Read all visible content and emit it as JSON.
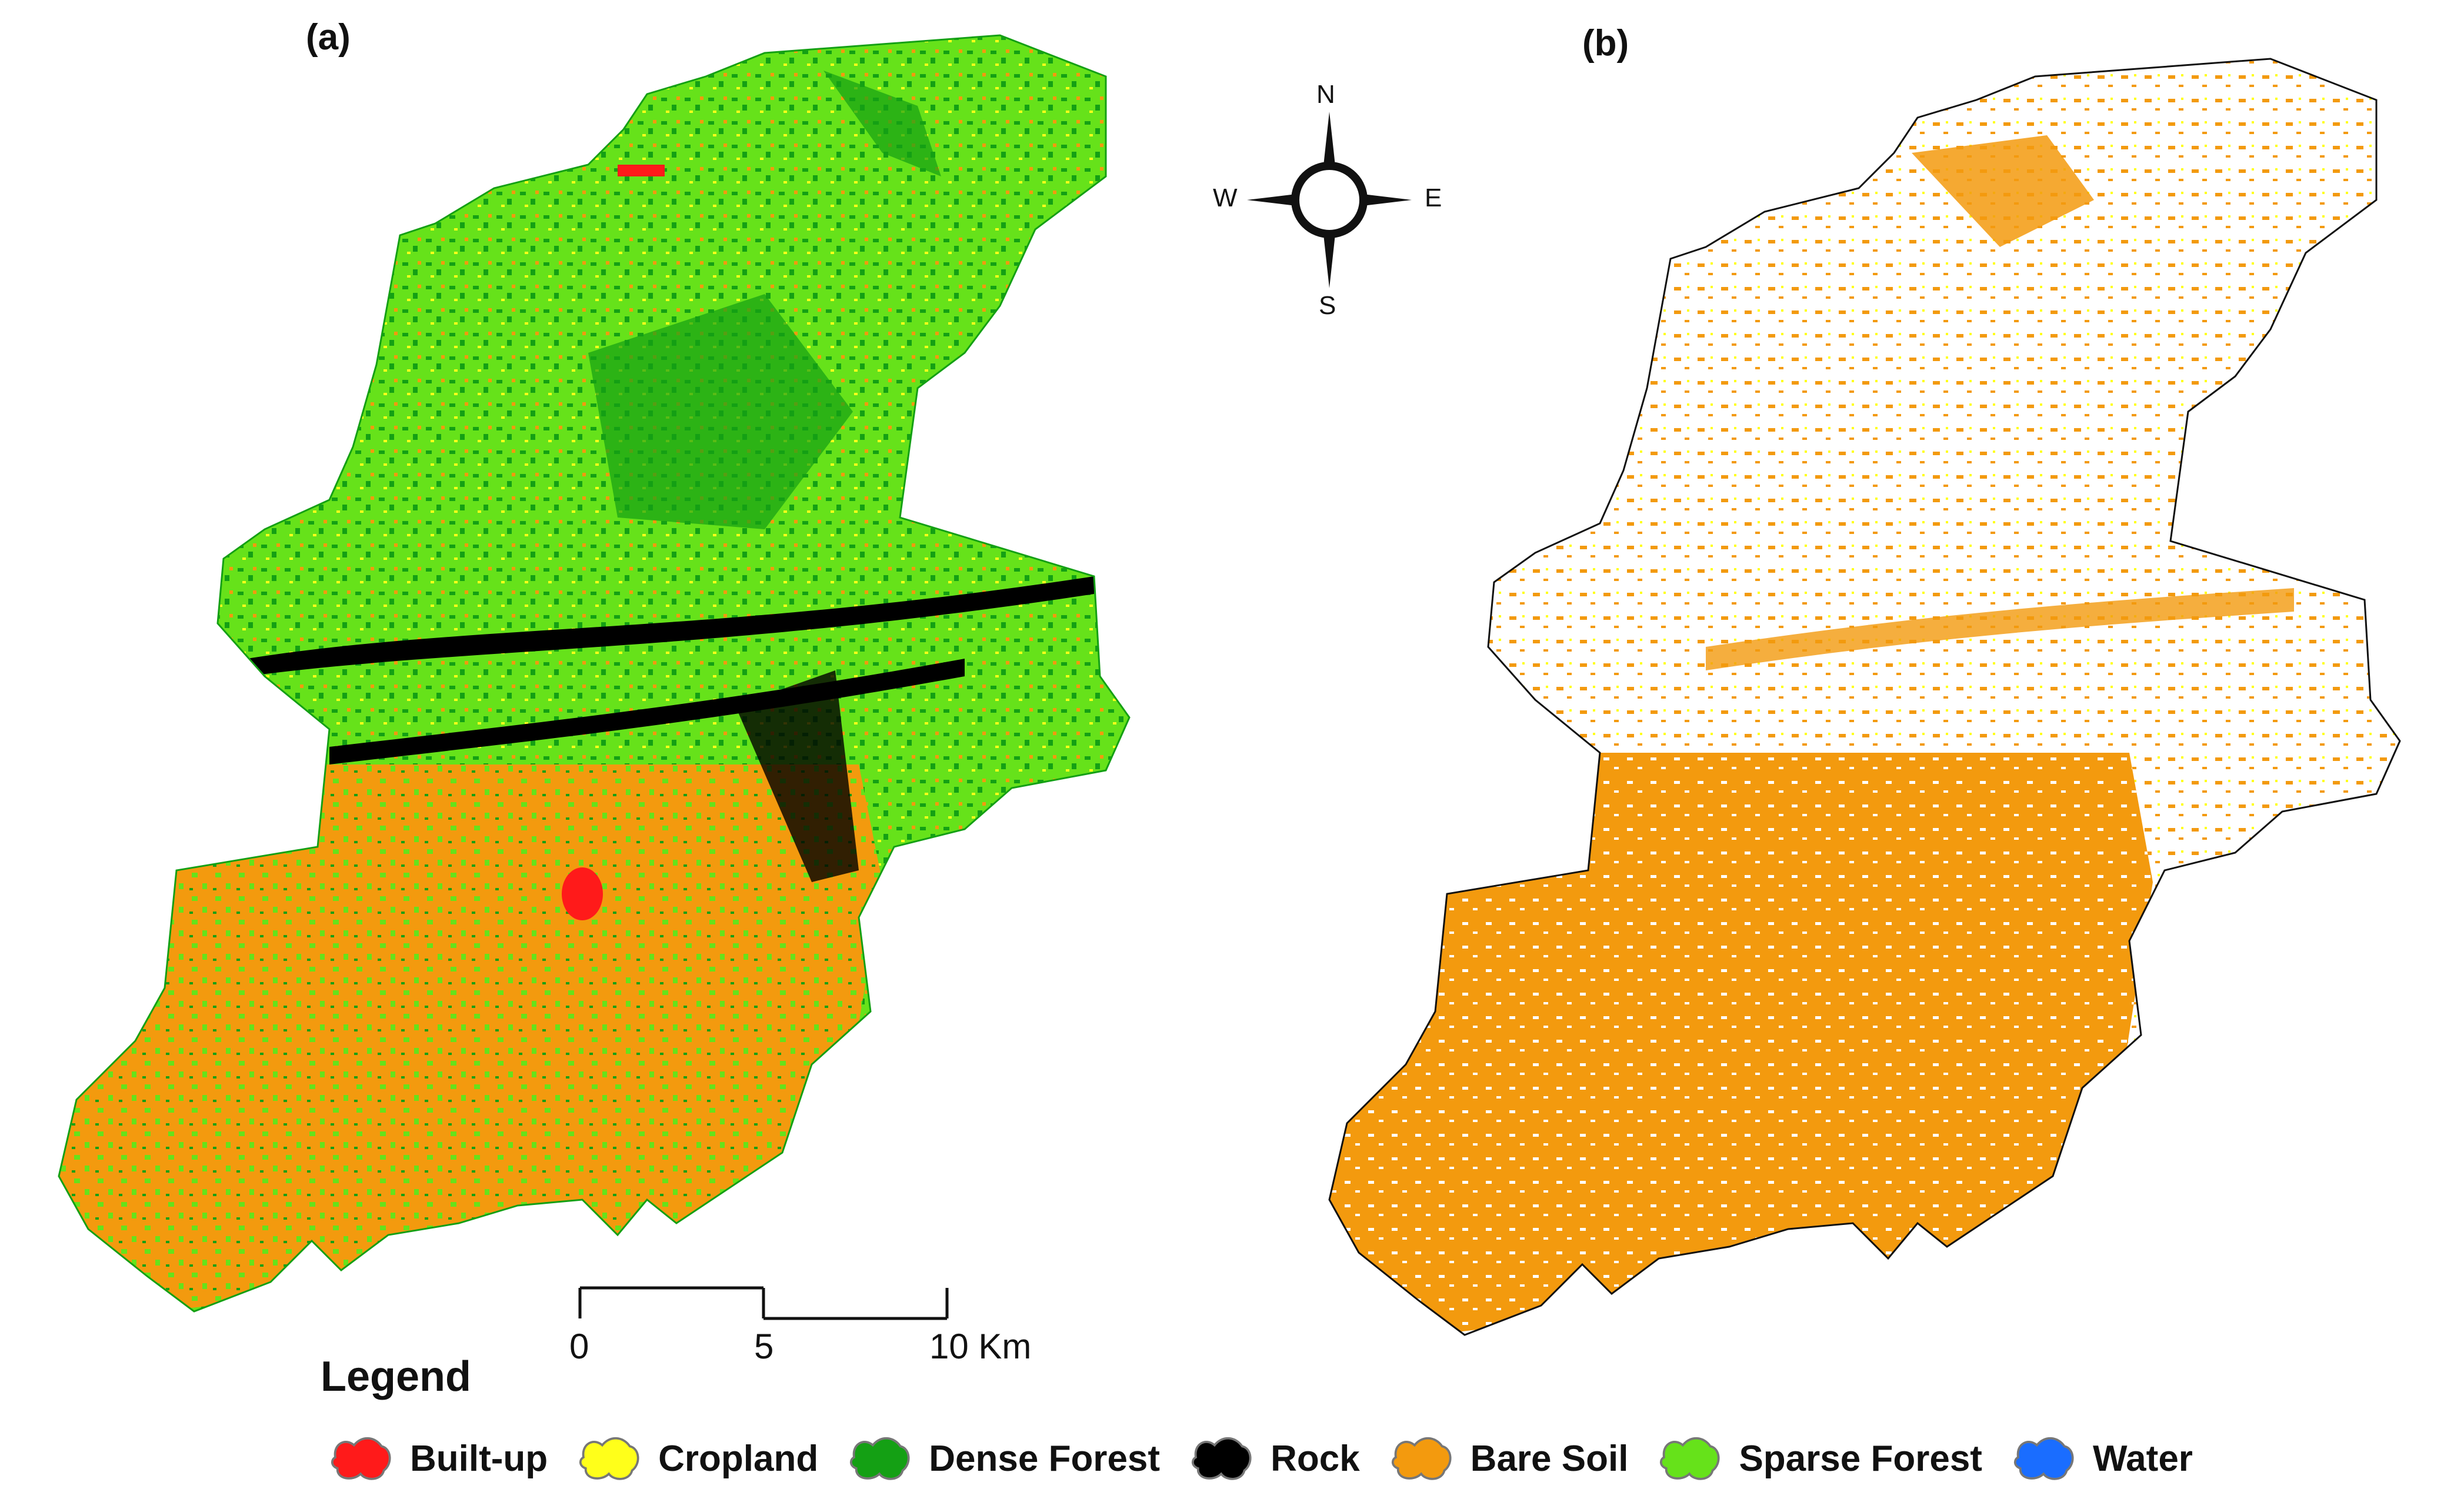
{
  "panels": {
    "a": {
      "label": "(a)"
    },
    "b": {
      "label": "(b)"
    }
  },
  "compass": {
    "n": "N",
    "s": "S",
    "e": "E",
    "w": "W"
  },
  "scale": {
    "ticks": [
      "0",
      "5",
      "10 Km"
    ]
  },
  "legend": {
    "title": "Legend",
    "items": [
      {
        "label": "Built-up",
        "color": "#ff1a1a"
      },
      {
        "label": "Cropland",
        "color": "#ffff1a"
      },
      {
        "label": "Dense Forest",
        "color": "#14a014"
      },
      {
        "label": "Rock",
        "color": "#000000"
      },
      {
        "label": "Bare Soil",
        "color": "#f39a0e"
      },
      {
        "label": "Sparse Forest",
        "color": "#66e21a"
      },
      {
        "label": "Water",
        "color": "#1a6dff"
      }
    ]
  },
  "colors": {
    "built_up": "#ff1a1a",
    "cropland": "#ffff1a",
    "dense_forest": "#14a014",
    "rock": "#000000",
    "bare_soil": "#f39a0e",
    "sparse_forest": "#66e21a",
    "water": "#1a6dff",
    "boundary": "#111111"
  }
}
